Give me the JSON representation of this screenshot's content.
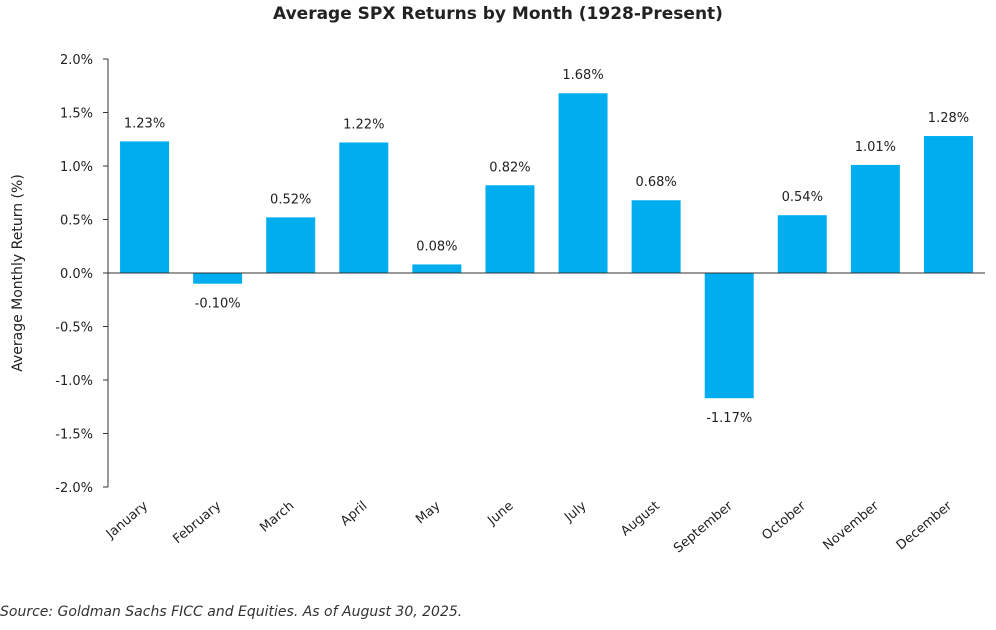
{
  "chart_data": {
    "type": "bar",
    "title": "Average SPX Returns by Month (1928-Present)",
    "ylabel": "Average Monthly Return (%)",
    "xlabel": "",
    "ylim": [
      -2.0,
      2.0
    ],
    "yticks": [
      "2.0%",
      "1.5%",
      "1.0%",
      "0.5%",
      "0.0%",
      "-0.5%",
      "-1.0%",
      "-1.5%",
      "-2.0%"
    ],
    "ytick_values": [
      2.0,
      1.5,
      1.0,
      0.5,
      0.0,
      -0.5,
      -1.0,
      -1.5,
      -2.0
    ],
    "categories": [
      "January",
      "February",
      "March",
      "April",
      "May",
      "June",
      "July",
      "August",
      "September",
      "October",
      "November",
      "December"
    ],
    "values": [
      1.23,
      -0.1,
      0.52,
      1.22,
      0.08,
      0.82,
      1.68,
      0.68,
      -1.17,
      0.54,
      1.01,
      1.28
    ],
    "data_labels": [
      "1.23%",
      "-0.10%",
      "0.52%",
      "1.22%",
      "0.08%",
      "0.82%",
      "1.68%",
      "0.68%",
      "-1.17%",
      "0.54%",
      "1.01%",
      "1.28%"
    ],
    "bar_color": "#00AEEF",
    "grid": false
  },
  "source_note": "Source: Goldman Sachs FICC and Equities. As of August 30, 2025."
}
